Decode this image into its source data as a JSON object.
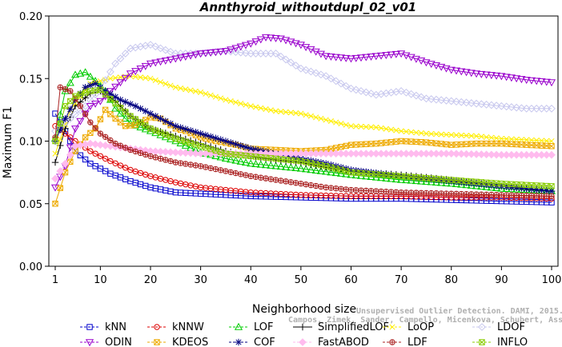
{
  "chart_data": {
    "type": "line",
    "title": "Annthyroid_withoutdupl_02_v01",
    "xlabel": "Neighborhood size",
    "ylabel": "Maximum F1",
    "xlim": [
      1,
      100
    ],
    "ylim": [
      0,
      0.2
    ],
    "xticks": [
      "1",
      "10",
      "20",
      "30",
      "40",
      "50",
      "60",
      "70",
      "80",
      "90",
      "100"
    ],
    "yticks": [
      "0.00",
      "0.05",
      "0.10",
      "0.15",
      "0.20"
    ],
    "grid": false,
    "legend_position": "bottom",
    "credit_line1": "Unsupervised Outlier Detection. DAMI, 2015.",
    "credit_line2": "Campos, Zimek, Sander, Campello, Micenkova, Schubert, Assent, Houle",
    "series": [
      {
        "name": "kNN",
        "color": "#0000cc",
        "marker": "square",
        "points": [
          [
            1,
            0.122
          ],
          [
            3,
            0.108
          ],
          [
            5,
            0.092
          ],
          [
            8,
            0.082
          ],
          [
            12,
            0.074
          ],
          [
            16,
            0.068
          ],
          [
            20,
            0.063
          ],
          [
            25,
            0.059
          ],
          [
            30,
            0.058
          ],
          [
            40,
            0.056
          ],
          [
            50,
            0.055
          ],
          [
            60,
            0.054
          ],
          [
            70,
            0.054
          ],
          [
            80,
            0.053
          ],
          [
            90,
            0.052
          ],
          [
            100,
            0.051
          ]
        ]
      },
      {
        "name": "kNNW",
        "color": "#dd0000",
        "marker": "circle",
        "points": [
          [
            1,
            0.112
          ],
          [
            3,
            0.106
          ],
          [
            5,
            0.1
          ],
          [
            8,
            0.092
          ],
          [
            12,
            0.084
          ],
          [
            16,
            0.077
          ],
          [
            20,
            0.072
          ],
          [
            25,
            0.067
          ],
          [
            30,
            0.063
          ],
          [
            40,
            0.059
          ],
          [
            50,
            0.057
          ],
          [
            60,
            0.056
          ],
          [
            70,
            0.056
          ],
          [
            80,
            0.055
          ],
          [
            90,
            0.055
          ],
          [
            100,
            0.054
          ]
        ]
      },
      {
        "name": "LOF",
        "color": "#00cc00",
        "marker": "triangle",
        "points": [
          [
            1,
            0.102
          ],
          [
            3,
            0.14
          ],
          [
            5,
            0.153
          ],
          [
            7,
            0.155
          ],
          [
            9,
            0.148
          ],
          [
            11,
            0.14
          ],
          [
            13,
            0.126
          ],
          [
            16,
            0.114
          ],
          [
            20,
            0.108
          ],
          [
            25,
            0.1
          ],
          [
            30,
            0.091
          ],
          [
            35,
            0.086
          ],
          [
            40,
            0.082
          ],
          [
            50,
            0.078
          ],
          [
            60,
            0.073
          ],
          [
            70,
            0.069
          ],
          [
            80,
            0.066
          ],
          [
            90,
            0.062
          ],
          [
            100,
            0.06
          ]
        ]
      },
      {
        "name": "SimplifiedLOF",
        "color": "#000000",
        "marker": "plus",
        "points": [
          [
            1,
            0.083
          ],
          [
            3,
            0.11
          ],
          [
            5,
            0.128
          ],
          [
            8,
            0.138
          ],
          [
            10,
            0.14
          ],
          [
            13,
            0.132
          ],
          [
            16,
            0.12
          ],
          [
            20,
            0.11
          ],
          [
            25,
            0.104
          ],
          [
            30,
            0.098
          ],
          [
            35,
            0.092
          ],
          [
            40,
            0.088
          ],
          [
            45,
            0.085
          ],
          [
            50,
            0.083
          ],
          [
            55,
            0.079
          ],
          [
            60,
            0.076
          ],
          [
            70,
            0.073
          ],
          [
            80,
            0.069
          ],
          [
            90,
            0.064
          ],
          [
            100,
            0.06
          ]
        ]
      },
      {
        "name": "LoOP",
        "color": "#ffee00",
        "marker": "x",
        "points": [
          [
            1,
            0.09
          ],
          [
            4,
            0.125
          ],
          [
            8,
            0.146
          ],
          [
            12,
            0.15
          ],
          [
            16,
            0.152
          ],
          [
            20,
            0.15
          ],
          [
            25,
            0.143
          ],
          [
            30,
            0.139
          ],
          [
            35,
            0.133
          ],
          [
            40,
            0.128
          ],
          [
            45,
            0.124
          ],
          [
            50,
            0.122
          ],
          [
            55,
            0.117
          ],
          [
            60,
            0.112
          ],
          [
            65,
            0.111
          ],
          [
            70,
            0.108
          ],
          [
            75,
            0.106
          ],
          [
            80,
            0.105
          ],
          [
            85,
            0.104
          ],
          [
            90,
            0.102
          ],
          [
            95,
            0.101
          ],
          [
            100,
            0.1
          ]
        ]
      },
      {
        "name": "LDOF",
        "color": "#c8c8ee",
        "marker": "diamond",
        "points": [
          [
            1,
            0.108
          ],
          [
            4,
            0.118
          ],
          [
            7,
            0.128
          ],
          [
            10,
            0.142
          ],
          [
            13,
            0.162
          ],
          [
            16,
            0.174
          ],
          [
            20,
            0.177
          ],
          [
            25,
            0.17
          ],
          [
            30,
            0.17
          ],
          [
            35,
            0.172
          ],
          [
            40,
            0.17
          ],
          [
            45,
            0.17
          ],
          [
            50,
            0.158
          ],
          [
            55,
            0.152
          ],
          [
            60,
            0.142
          ],
          [
            65,
            0.137
          ],
          [
            70,
            0.14
          ],
          [
            75,
            0.134
          ],
          [
            80,
            0.132
          ],
          [
            85,
            0.13
          ],
          [
            90,
            0.128
          ],
          [
            95,
            0.126
          ],
          [
            100,
            0.126
          ]
        ]
      },
      {
        "name": "ODIN",
        "color": "#9900cc",
        "marker": "triangle-down",
        "points": [
          [
            1,
            0.063
          ],
          [
            3,
            0.08
          ],
          [
            5,
            0.11
          ],
          [
            8,
            0.128
          ],
          [
            10,
            0.132
          ],
          [
            12,
            0.14
          ],
          [
            16,
            0.154
          ],
          [
            20,
            0.162
          ],
          [
            25,
            0.166
          ],
          [
            30,
            0.17
          ],
          [
            35,
            0.172
          ],
          [
            40,
            0.178
          ],
          [
            43,
            0.183
          ],
          [
            46,
            0.182
          ],
          [
            50,
            0.177
          ],
          [
            55,
            0.168
          ],
          [
            60,
            0.166
          ],
          [
            65,
            0.168
          ],
          [
            70,
            0.17
          ],
          [
            75,
            0.163
          ],
          [
            80,
            0.157
          ],
          [
            85,
            0.154
          ],
          [
            90,
            0.152
          ],
          [
            95,
            0.149
          ],
          [
            100,
            0.147
          ]
        ]
      },
      {
        "name": "KDEOS",
        "color": "#eeaa00",
        "marker": "square-x",
        "points": [
          [
            1,
            0.05
          ],
          [
            3,
            0.075
          ],
          [
            5,
            0.092
          ],
          [
            7,
            0.103
          ],
          [
            9,
            0.11
          ],
          [
            11,
            0.125
          ],
          [
            13,
            0.118
          ],
          [
            15,
            0.112
          ],
          [
            17,
            0.113
          ],
          [
            20,
            0.119
          ],
          [
            22,
            0.118
          ],
          [
            25,
            0.11
          ],
          [
            27,
            0.108
          ],
          [
            30,
            0.103
          ],
          [
            33,
            0.1
          ],
          [
            37,
            0.097
          ],
          [
            40,
            0.094
          ],
          [
            45,
            0.093
          ],
          [
            50,
            0.092
          ],
          [
            55,
            0.093
          ],
          [
            60,
            0.097
          ],
          [
            65,
            0.098
          ],
          [
            70,
            0.1
          ],
          [
            75,
            0.099
          ],
          [
            80,
            0.097
          ],
          [
            85,
            0.098
          ],
          [
            90,
            0.098
          ],
          [
            95,
            0.097
          ],
          [
            100,
            0.096
          ]
        ]
      },
      {
        "name": "COF",
        "color": "#000080",
        "marker": "star",
        "points": [
          [
            1,
            0.1
          ],
          [
            3,
            0.118
          ],
          [
            5,
            0.133
          ],
          [
            7,
            0.143
          ],
          [
            9,
            0.146
          ],
          [
            11,
            0.14
          ],
          [
            14,
            0.133
          ],
          [
            17,
            0.128
          ],
          [
            20,
            0.122
          ],
          [
            25,
            0.112
          ],
          [
            30,
            0.106
          ],
          [
            35,
            0.1
          ],
          [
            40,
            0.094
          ],
          [
            45,
            0.09
          ],
          [
            50,
            0.086
          ],
          [
            55,
            0.082
          ],
          [
            60,
            0.077
          ],
          [
            70,
            0.072
          ],
          [
            80,
            0.068
          ],
          [
            90,
            0.064
          ],
          [
            100,
            0.06
          ]
        ]
      },
      {
        "name": "FastABOD",
        "color": "#ffbbee",
        "marker": "diamond-filled",
        "points": [
          [
            1,
            0.07
          ],
          [
            3,
            0.082
          ],
          [
            5,
            0.096
          ],
          [
            8,
            0.098
          ],
          [
            12,
            0.096
          ],
          [
            16,
            0.094
          ],
          [
            20,
            0.092
          ],
          [
            30,
            0.09
          ],
          [
            40,
            0.09
          ],
          [
            50,
            0.09
          ],
          [
            60,
            0.09
          ],
          [
            70,
            0.09
          ],
          [
            80,
            0.09
          ],
          [
            90,
            0.089
          ],
          [
            100,
            0.089
          ]
        ]
      },
      {
        "name": "LDF",
        "color": "#aa2222",
        "marker": "circle-plus",
        "points": [
          [
            1,
            0.103
          ],
          [
            2,
            0.143
          ],
          [
            4,
            0.14
          ],
          [
            6,
            0.128
          ],
          [
            8,
            0.115
          ],
          [
            10,
            0.106
          ],
          [
            13,
            0.098
          ],
          [
            16,
            0.093
          ],
          [
            20,
            0.088
          ],
          [
            25,
            0.083
          ],
          [
            30,
            0.08
          ],
          [
            35,
            0.076
          ],
          [
            40,
            0.072
          ],
          [
            45,
            0.069
          ],
          [
            50,
            0.066
          ],
          [
            55,
            0.063
          ],
          [
            60,
            0.061
          ],
          [
            70,
            0.059
          ],
          [
            80,
            0.058
          ],
          [
            90,
            0.057
          ],
          [
            100,
            0.056
          ]
        ]
      },
      {
        "name": "INFLO",
        "color": "#88cc00",
        "marker": "square-x",
        "points": [
          [
            1,
            0.1
          ],
          [
            3,
            0.128
          ],
          [
            5,
            0.136
          ],
          [
            8,
            0.14
          ],
          [
            10,
            0.141
          ],
          [
            13,
            0.13
          ],
          [
            16,
            0.12
          ],
          [
            20,
            0.11
          ],
          [
            25,
            0.102
          ],
          [
            30,
            0.096
          ],
          [
            35,
            0.09
          ],
          [
            40,
            0.088
          ],
          [
            45,
            0.086
          ],
          [
            50,
            0.084
          ],
          [
            55,
            0.08
          ],
          [
            60,
            0.075
          ],
          [
            70,
            0.072
          ],
          [
            80,
            0.069
          ],
          [
            90,
            0.066
          ],
          [
            100,
            0.064
          ]
        ]
      }
    ],
    "legend_order": [
      "kNN",
      "kNNW",
      "LOF",
      "SimplifiedLOF",
      "LoOP",
      "LDOF",
      "ODIN",
      "KDEOS",
      "COF",
      "FastABOD",
      "LDF",
      "INFLO"
    ]
  }
}
